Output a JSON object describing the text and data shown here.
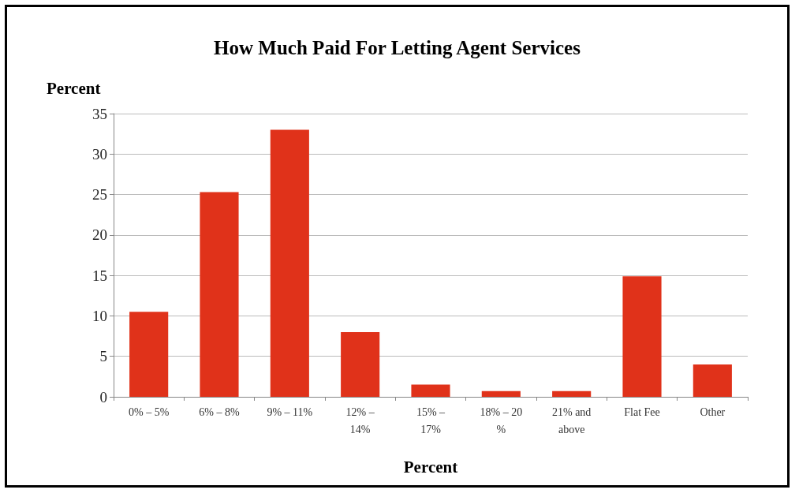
{
  "chart_data": {
    "type": "bar",
    "title": "How Much Paid For Letting Agent Services",
    "xlabel": "Percent",
    "ylabel": "Percent",
    "categories": [
      "0% – 5%",
      "6% – 8%",
      "9% – 11%",
      "12% –\n14%",
      "15% –\n17%",
      "18% – 20\n%",
      "21% and\nabove",
      "Flat Fee",
      "Other"
    ],
    "values": [
      10.5,
      25.3,
      33,
      8,
      1.5,
      0.7,
      0.7,
      14.9,
      4
    ],
    "color": "#e0321a",
    "ylim": [
      0,
      35
    ],
    "yticks": [
      0,
      5,
      10,
      15,
      20,
      25,
      30,
      35
    ],
    "grid": "y"
  }
}
